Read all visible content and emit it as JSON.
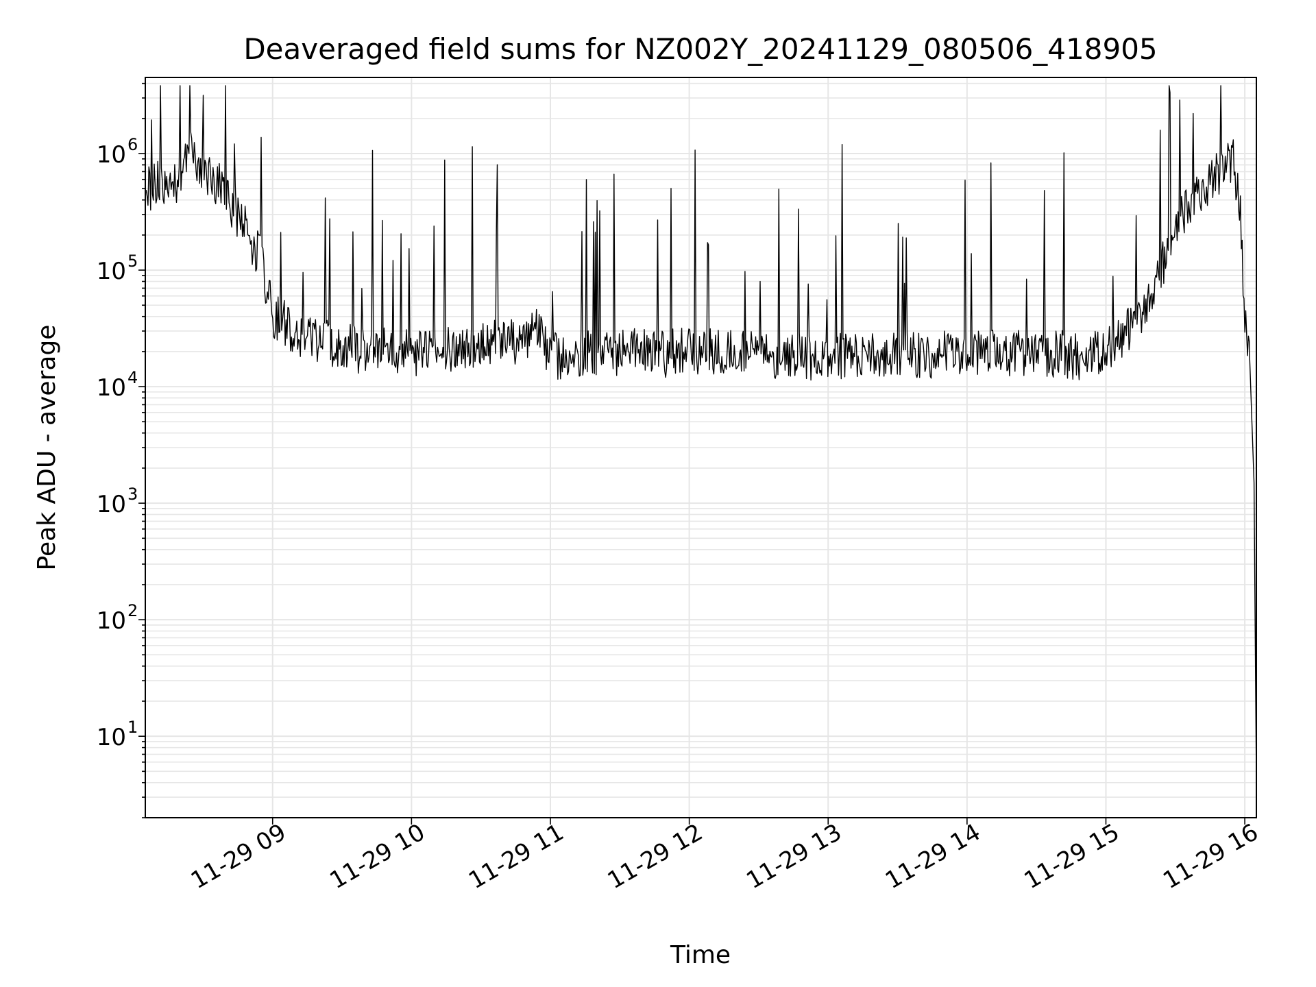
{
  "chart_data": {
    "type": "line",
    "title": "Deaveraged field sums for NZ002Y_20241129_080506_418905",
    "xlabel": "Time",
    "ylabel": "Peak ADU - average",
    "yscale": "log",
    "ylim": [
      2,
      4500000.0
    ],
    "xlim": [
      "11-29 08:05",
      "11-29 16:05"
    ],
    "xticks": [
      "11-29 09",
      "11-29 10",
      "11-29 11",
      "11-29 12",
      "11-29 13",
      "11-29 14",
      "11-29 15",
      "11-29 16"
    ],
    "yticks": [
      {
        "base": "10",
        "exp": "1"
      },
      {
        "base": "10",
        "exp": "2"
      },
      {
        "base": "10",
        "exp": "3"
      },
      {
        "base": "10",
        "exp": "4"
      },
      {
        "base": "10",
        "exp": "5"
      },
      {
        "base": "10",
        "exp": "6"
      }
    ],
    "grid": true,
    "line_color": "#000000",
    "grid_color": "#e6e6e6",
    "series": [
      {
        "x": [
          "11-29 08:05",
          "11-29 08:10",
          "11-29 08:15",
          "11-29 08:20",
          "11-29 08:25",
          "11-29 08:30",
          "11-29 08:35",
          "11-29 08:40",
          "11-29 08:45",
          "11-29 08:50",
          "11-29 08:55",
          "11-29 09:00",
          "11-29 09:10",
          "11-29 09:20",
          "11-29 09:30",
          "11-29 09:40",
          "11-29 09:50",
          "11-29 10:00",
          "11-29 10:15",
          "11-29 10:30",
          "11-29 10:45",
          "11-29 10:55",
          "11-29 11:00",
          "11-29 11:15",
          "11-29 11:30",
          "11-29 11:45",
          "11-29 12:00",
          "11-29 12:30",
          "11-29 13:00",
          "11-29 13:30",
          "11-29 14:00",
          "11-29 14:30",
          "11-29 14:50",
          "11-29 15:00",
          "11-29 15:10",
          "11-29 15:20",
          "11-29 15:30",
          "11-29 15:40",
          "11-29 15:50",
          "11-29 15:55",
          "11-29 15:58",
          "11-29 16:00",
          "11-29 16:02",
          "11-29 16:04",
          "11-29 16:05"
        ],
        "y": [
          500000,
          550000,
          520000,
          600000,
          1100000,
          700000,
          600000,
          450000,
          300000,
          200000,
          120000,
          40000,
          30000,
          25000,
          22000,
          20000,
          20000,
          19000,
          20000,
          22000,
          25000,
          30000,
          18000,
          20000,
          20000,
          19000,
          20000,
          19000,
          18000,
          18000,
          19000,
          20000,
          18000,
          22000,
          30000,
          60000,
          250000,
          450000,
          700000,
          900000,
          300000,
          40000,
          20000,
          1500,
          4
        ]
      }
    ]
  }
}
